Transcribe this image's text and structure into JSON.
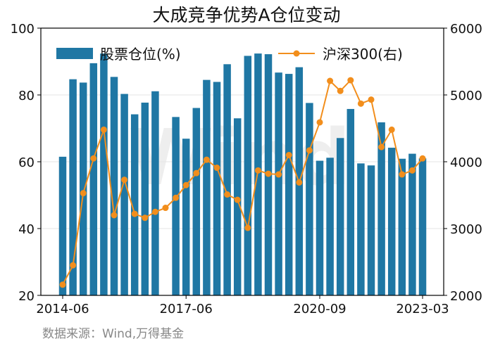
{
  "title": "大成竞争优势A仓位变动",
  "source": "数据来源：Wind,万得基金",
  "watermark": "Wind",
  "colors": {
    "bar": "#1f77a4",
    "line": "#f28e1c",
    "grid": "#e6e6e6",
    "axis": "#000000"
  },
  "chart_data": {
    "type": "bar+line",
    "x_ticks": [
      "2014-06",
      "2017-06",
      "2020-09",
      "2023-03"
    ],
    "x_tick_positions": [
      0,
      12,
      25,
      35
    ],
    "left_axis": {
      "ylim": [
        20,
        100
      ],
      "ticks": [
        20,
        40,
        60,
        80,
        100
      ]
    },
    "right_axis": {
      "ylim": [
        2000,
        6000
      ],
      "ticks": [
        2000,
        3000,
        4000,
        5000,
        6000
      ]
    },
    "legend": {
      "bar": "股票仓位(%)",
      "line": "沪深300(右)"
    },
    "series": [
      {
        "name": "股票仓位(%)",
        "type": "bar",
        "axis": "left",
        "values": [
          61.5,
          84.7,
          83.7,
          89.5,
          92.4,
          85.4,
          80.3,
          74.2,
          77.7,
          81.1,
          null,
          73.4,
          66.9,
          76.1,
          84.5,
          83.9,
          89.2,
          73.0,
          91.7,
          92.4,
          92.2,
          86.7,
          86.3,
          88.3,
          77.6,
          60.3,
          61.2,
          67.1,
          75.8,
          59.5,
          58.9,
          71.8,
          64.2,
          60.9,
          62.4,
          61.0
        ]
      },
      {
        "name": "沪深300(右)",
        "type": "line",
        "axis": "right",
        "values": [
          2160,
          2450,
          3530,
          4050,
          4480,
          3200,
          3730,
          3220,
          3160,
          3250,
          3310,
          3460,
          3650,
          3830,
          4030,
          3910,
          3510,
          3430,
          3010,
          3870,
          3820,
          3810,
          4100,
          3690,
          4170,
          4590,
          5210,
          5060,
          5220,
          4870,
          4930,
          4220,
          4480,
          3810,
          3870,
          4050
        ]
      }
    ]
  }
}
